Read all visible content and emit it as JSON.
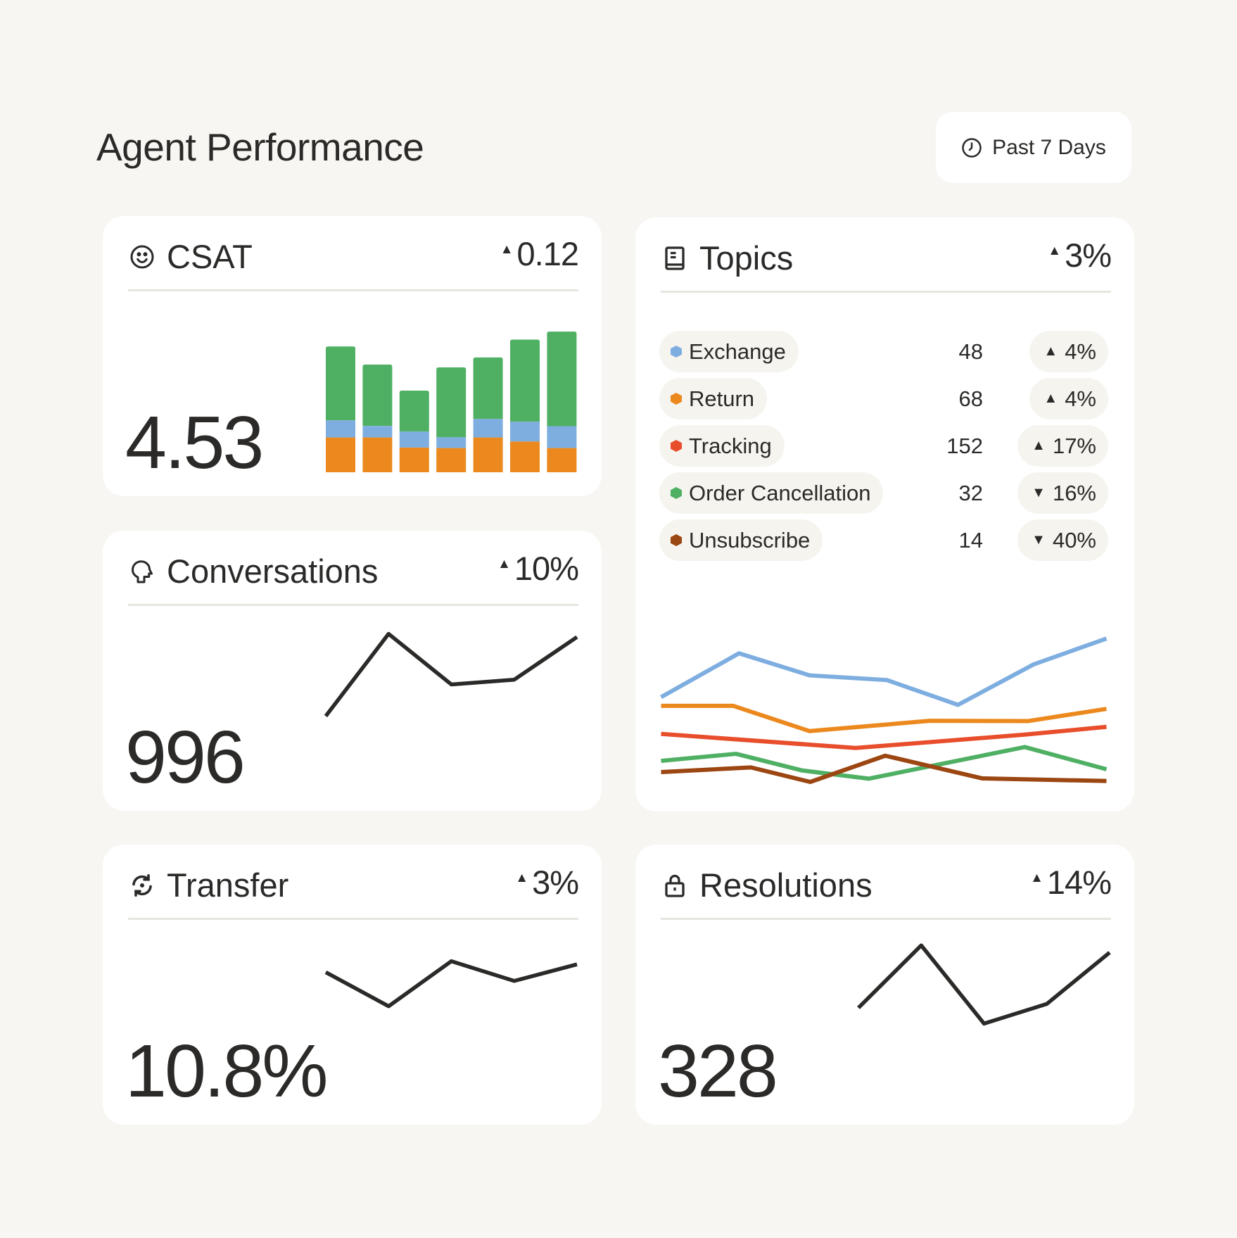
{
  "header": {
    "title": "Agent Performance",
    "date_range_label": "Past 7 Days",
    "date_icon": "clock-icon"
  },
  "colors": {
    "exchange": "#7eaee0",
    "return": "#ec891e",
    "tracking": "#e84e2c",
    "order_cancellation": "#4fb064",
    "unsubscribe": "#9c4612",
    "ink": "#2b2a28"
  },
  "cards": {
    "csat": {
      "title": "CSAT",
      "icon": "smiley-icon",
      "change": "0.12",
      "direction": "up",
      "value": "4.53"
    },
    "conversations": {
      "title": "Conversations",
      "icon": "speech-head-icon",
      "change": "10%",
      "direction": "up",
      "value": "996"
    },
    "transfer": {
      "title": "Transfer",
      "icon": "refresh-icon",
      "change": "3%",
      "direction": "up",
      "value": "10.8%"
    },
    "resolutions": {
      "title": "Resolutions",
      "icon": "lock-icon",
      "change": "14%",
      "direction": "up",
      "value": "328"
    },
    "topics": {
      "title": "Topics",
      "icon": "book-icon",
      "change": "3%",
      "direction": "up",
      "items": [
        {
          "label": "Exchange",
          "count": "48",
          "change": "4%",
          "direction": "up",
          "color": "#7eaee0"
        },
        {
          "label": "Return",
          "count": "68",
          "change": "4%",
          "direction": "up",
          "color": "#ec891e"
        },
        {
          "label": "Tracking",
          "count": "152",
          "change": "17%",
          "direction": "up",
          "color": "#e84e2c"
        },
        {
          "label": "Order Cancellation",
          "count": "32",
          "change": "16%",
          "direction": "down",
          "color": "#4fb064"
        },
        {
          "label": "Unsubscribe",
          "count": "14",
          "change": "40%",
          "direction": "down",
          "color": "#9c4612"
        }
      ]
    }
  },
  "chart_data": [
    {
      "id": "csat",
      "type": "bar",
      "stacked": true,
      "grid": false,
      "series": [
        {
          "color": "#ec891e",
          "values": [
            14.8,
            14.8,
            10.5,
            10.3,
            14.8,
            13.1,
            10.3
          ]
        },
        {
          "color": "#7eaee0",
          "values": [
            7.3,
            4.9,
            6.8,
            4.6,
            7.9,
            8.4,
            9.3
          ]
        },
        {
          "color": "#4fb064",
          "values": [
            31.4,
            26.1,
            17.4,
            29.7,
            26.1,
            34.9,
            40.2
          ]
        }
      ],
      "ylim": [
        0,
        79
      ]
    },
    {
      "id": "conversations",
      "type": "line",
      "values": [
        13,
        117,
        53,
        59,
        113
      ],
      "ylim": [
        0,
        130
      ]
    },
    {
      "id": "transfer",
      "type": "line",
      "values": [
        86,
        43,
        100,
        75,
        96
      ],
      "ylim": [
        0,
        130
      ]
    },
    {
      "id": "resolutions",
      "type": "line",
      "values": [
        41,
        120,
        21,
        46,
        111
      ],
      "ylim": [
        0,
        130
      ]
    },
    {
      "id": "topics",
      "type": "line",
      "xlim": [
        0,
        6
      ],
      "ylim": [
        0,
        70
      ],
      "series": [
        {
          "color": "#7eaee0",
          "x": [
            0,
            1.05,
            2,
            3.04,
            4,
            5.02,
            6
          ],
          "y": [
            39.5,
            58.2,
            48.8,
            46.8,
            36.2,
            53.5,
            64.5
          ]
        },
        {
          "color": "#ec891e",
          "x": [
            0,
            0.97,
            2,
            3.62,
            4.95,
            6
          ],
          "y": [
            35.8,
            35.8,
            25,
            29.4,
            29.3,
            34.5
          ]
        },
        {
          "color": "#e84e2c",
          "x": [
            0,
            2.62,
            4.9,
            6
          ],
          "y": [
            23.8,
            17.8,
            23.5,
            26.8
          ]
        },
        {
          "color": "#4fb064",
          "x": [
            0,
            1.01,
            1.9,
            2.8,
            4.9,
            6
          ],
          "y": [
            12.3,
            15.3,
            8.2,
            4.7,
            18.2,
            8.7
          ]
        },
        {
          "color": "#9c4612",
          "x": [
            0,
            1.21,
            2.01,
            3.02,
            4.33,
            6
          ],
          "y": [
            7.5,
            9.5,
            3.3,
            14.5,
            4.8,
            3.7
          ]
        }
      ]
    }
  ]
}
